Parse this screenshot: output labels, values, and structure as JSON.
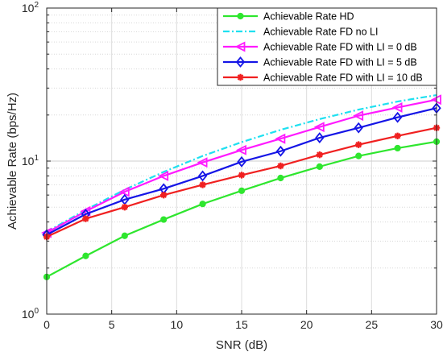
{
  "chart_data": {
    "type": "line",
    "xlabel": "SNR (dB)",
    "ylabel": "Achievable Rate (bps/Hz)",
    "xlim": [
      0,
      30
    ],
    "ylim": [
      1,
      100
    ],
    "yscale": "log",
    "grid": true,
    "legend_position": "top-right",
    "x_ticks": [
      "0",
      "5",
      "10",
      "15",
      "20",
      "25",
      "30"
    ],
    "y_ticks": [
      {
        "base": "10",
        "exp": "0"
      },
      {
        "base": "10",
        "exp": "1"
      },
      {
        "base": "10",
        "exp": "2"
      }
    ],
    "x": [
      0,
      3,
      6,
      9,
      12,
      15,
      18,
      21,
      24,
      27,
      30
    ],
    "series": [
      {
        "name": "Achievable Rate HD",
        "color": "#2ee62e",
        "marker": "circle",
        "dash": "solid",
        "values": [
          1.75,
          2.4,
          3.25,
          4.15,
          5.25,
          6.4,
          7.75,
          9.2,
          10.8,
          12.15,
          13.4
        ]
      },
      {
        "name": "Achievable Rate FD no LI",
        "color": "#1ee0f0",
        "marker": "none",
        "dash": "dashdot",
        "values": [
          3.45,
          4.8,
          6.5,
          8.5,
          10.8,
          13.3,
          16.0,
          18.8,
          21.7,
          24.5,
          27.0
        ]
      },
      {
        "name": "Achievable Rate FD with LI = 0 dB",
        "color": "#ff1aff",
        "marker": "triangle-left",
        "dash": "solid",
        "values": [
          3.4,
          4.7,
          6.3,
          8.0,
          9.8,
          11.8,
          14.0,
          16.7,
          19.8,
          22.4,
          25.2
        ]
      },
      {
        "name": "Achievable Rate FD with LI = 5 dB",
        "color": "#1515e6",
        "marker": "diamond",
        "dash": "solid",
        "values": [
          3.3,
          4.5,
          5.6,
          6.6,
          8.0,
          9.9,
          11.6,
          14.2,
          16.5,
          19.3,
          22.2
        ]
      },
      {
        "name": "Achievable Rate FD with LI = 10 dB",
        "color": "#f02020",
        "marker": "asterisk",
        "dash": "solid",
        "values": [
          3.2,
          4.2,
          5.0,
          6.0,
          7.0,
          8.1,
          9.3,
          11.0,
          12.8,
          14.6,
          16.5
        ]
      }
    ]
  }
}
